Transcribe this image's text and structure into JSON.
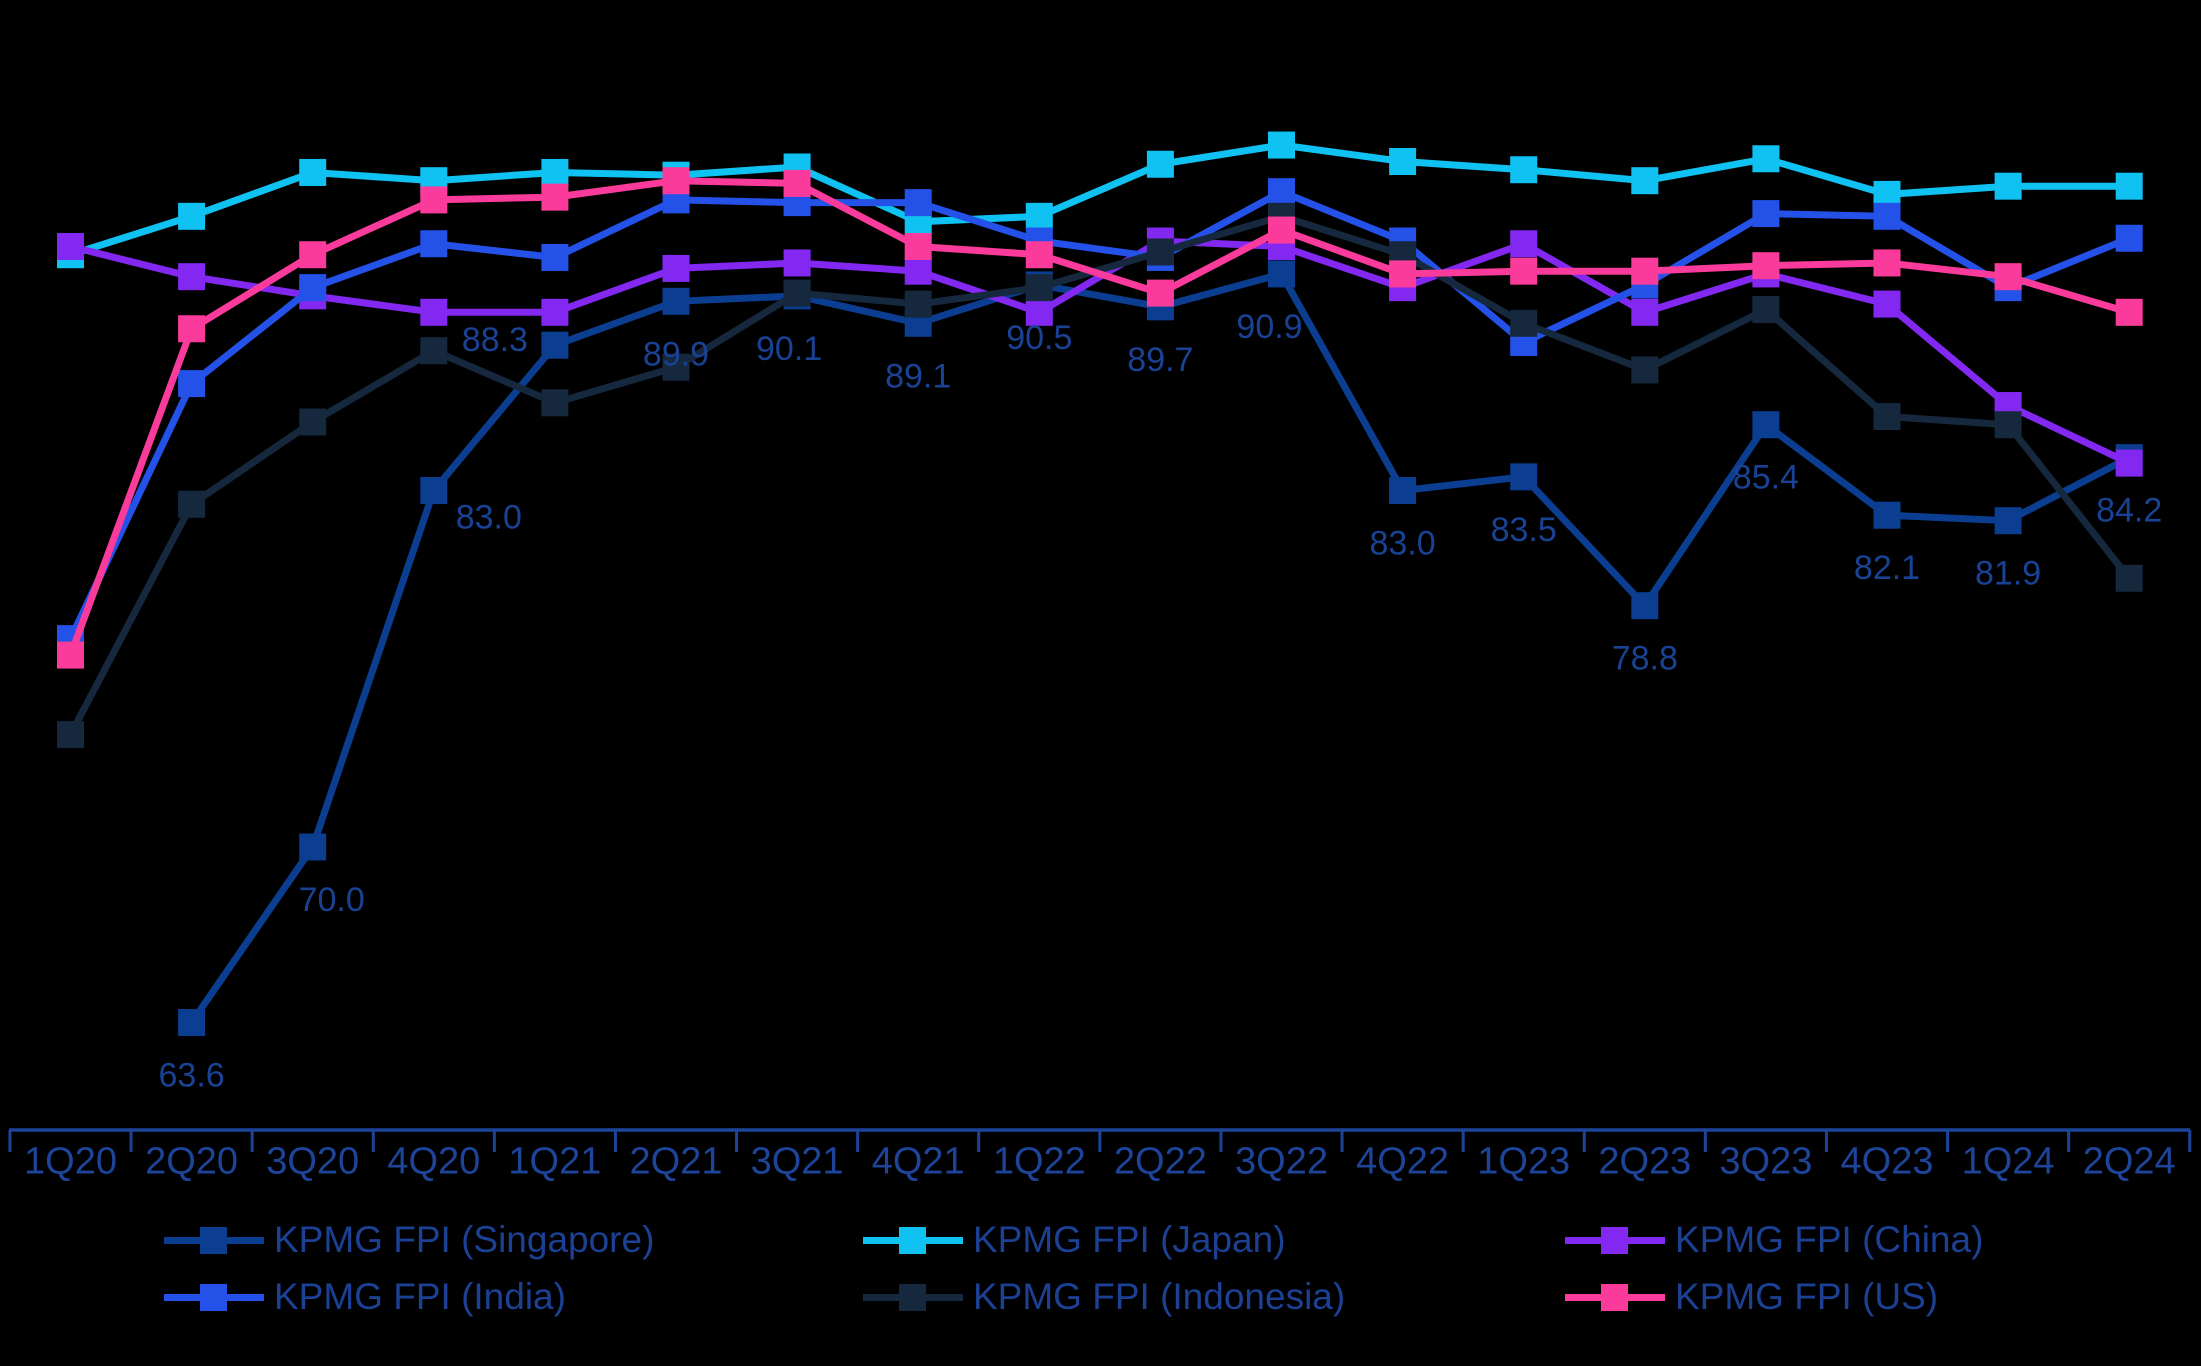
{
  "chart_data": {
    "type": "line",
    "title": "",
    "xlabel": "",
    "ylabel": "",
    "y_axis_visible": false,
    "ylim": [
      60,
      97
    ],
    "grid": false,
    "legend_position": "bottom",
    "background_color": "#000000",
    "axis_color": "#1d4499",
    "text_color": "#1b4094",
    "data_label_color": "#1a4294",
    "categories": [
      "1Q20",
      "2Q20",
      "3Q20",
      "4Q20",
      "1Q21",
      "2Q21",
      "3Q21",
      "4Q21",
      "1Q22",
      "2Q22",
      "3Q22",
      "4Q22",
      "1Q23",
      "2Q23",
      "3Q23",
      "4Q23",
      "1Q24",
      "2Q24"
    ],
    "series": [
      {
        "name": "KPMG FPI (Singapore)",
        "key": "singapore",
        "color": "#0b3d91",
        "marker": "square",
        "show_labels": true,
        "values": [
          null,
          63.6,
          70.0,
          83.0,
          88.3,
          89.9,
          90.1,
          89.1,
          90.5,
          89.7,
          90.9,
          83.0,
          83.5,
          78.8,
          85.4,
          82.1,
          81.9,
          84.2
        ],
        "labels": [
          "",
          "63.6",
          "70.0",
          "83.0",
          "88.3",
          "89.9",
          "90.1",
          "89.1",
          "90.5",
          "89.7",
          "90.9",
          "83.0",
          "83.5",
          "78.8",
          "85.4",
          "82.1",
          "81.9",
          "84.2"
        ]
      },
      {
        "name": "KPMG FPI (Japan)",
        "key": "japan",
        "color": "#0fc2f2",
        "marker": "square",
        "show_labels": false,
        "values": [
          91.6,
          93.0,
          94.6,
          94.3,
          94.6,
          94.5,
          94.8,
          92.8,
          93.0,
          94.9,
          95.6,
          95.0,
          94.7,
          94.3,
          95.1,
          93.8,
          94.1,
          94.1
        ],
        "labels": []
      },
      {
        "name": "KPMG FPI (China)",
        "key": "china",
        "color": "#8228f0",
        "marker": "square",
        "show_labels": false,
        "values": [
          91.9,
          90.8,
          90.1,
          89.5,
          89.5,
          91.1,
          91.3,
          91.0,
          89.5,
          92.1,
          91.9,
          90.4,
          92.0,
          89.5,
          90.9,
          89.8,
          86.1,
          84.0
        ],
        "labels": []
      },
      {
        "name": "KPMG FPI (India)",
        "key": "india",
        "color": "#2451e8",
        "marker": "square",
        "show_labels": false,
        "values": [
          77.6,
          86.9,
          90.4,
          92.0,
          91.5,
          93.6,
          93.5,
          93.5,
          92.1,
          91.5,
          93.9,
          92.1,
          88.4,
          90.5,
          93.1,
          93.0,
          90.4,
          92.2
        ],
        "labels": []
      },
      {
        "name": "KPMG FPI (Indonesia)",
        "key": "indonesia",
        "color": "#15283d",
        "marker": "square",
        "show_labels": false,
        "values": [
          74.1,
          82.5,
          85.5,
          88.1,
          86.2,
          87.5,
          90.2,
          89.8,
          90.4,
          91.7,
          93.0,
          91.6,
          89.1,
          87.4,
          89.6,
          85.7,
          85.4,
          79.8
        ],
        "labels": []
      },
      {
        "name": "KPMG FPI (US)",
        "key": "us",
        "color": "#fb3b9c",
        "marker": "square",
        "show_labels": false,
        "values": [
          77.0,
          88.9,
          91.6,
          93.6,
          93.7,
          94.3,
          94.2,
          91.9,
          91.6,
          90.2,
          92.5,
          90.9,
          91.0,
          91.0,
          91.2,
          91.3,
          90.8,
          89.5
        ],
        "labels": []
      }
    ]
  }
}
